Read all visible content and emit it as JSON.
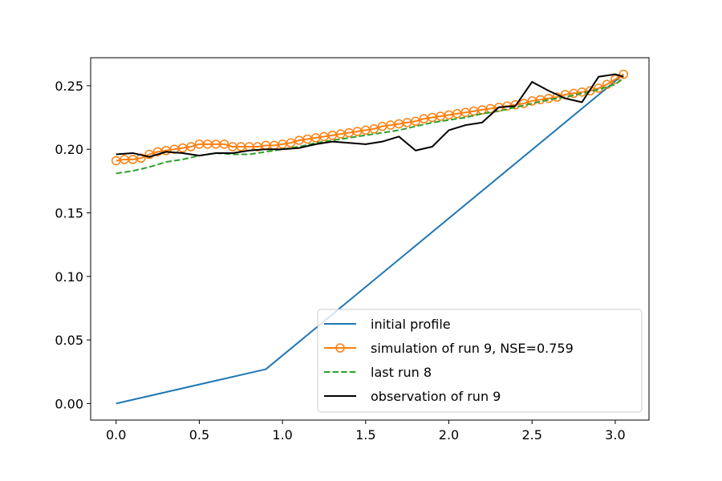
{
  "chart_data": {
    "type": "line",
    "title": "",
    "xlabel": "",
    "ylabel": "",
    "xlim": [
      -0.153,
      3.203
    ],
    "ylim": [
      -0.013,
      0.272
    ],
    "grid": false,
    "legend_position": "lower-right",
    "x_ticks": [
      0.0,
      0.5,
      1.0,
      1.5,
      2.0,
      2.5,
      3.0
    ],
    "x_tick_labels": [
      "0.0",
      "0.5",
      "1.0",
      "1.5",
      "2.0",
      "2.5",
      "3.0"
    ],
    "y_ticks": [
      0.0,
      0.05,
      0.1,
      0.15,
      0.2,
      0.25
    ],
    "y_tick_labels": [
      "0.00",
      "0.05",
      "0.10",
      "0.15",
      "0.20",
      "0.25"
    ],
    "series": [
      {
        "name": "initial profile",
        "color": "#1f77b4",
        "style": "solid",
        "marker": "none",
        "x": [
          0.0,
          0.9,
          3.05
        ],
        "y": [
          0.0,
          0.027,
          0.259
        ]
      },
      {
        "name": "simulation of run 9, NSE=0.759",
        "color": "#ff7f0e",
        "style": "solid",
        "marker": "circle-open",
        "x": [
          0.0,
          0.05,
          0.1,
          0.15,
          0.2,
          0.25,
          0.3,
          0.35,
          0.4,
          0.45,
          0.5,
          0.55,
          0.6,
          0.65,
          0.7,
          0.75,
          0.8,
          0.85,
          0.9,
          0.95,
          1.0,
          1.05,
          1.1,
          1.15,
          1.2,
          1.25,
          1.3,
          1.35,
          1.4,
          1.45,
          1.5,
          1.55,
          1.6,
          1.65,
          1.7,
          1.75,
          1.8,
          1.85,
          1.9,
          1.95,
          2.0,
          2.05,
          2.1,
          2.15,
          2.2,
          2.25,
          2.3,
          2.35,
          2.4,
          2.45,
          2.5,
          2.55,
          2.6,
          2.65,
          2.7,
          2.75,
          2.8,
          2.85,
          2.9,
          2.95,
          3.0,
          3.05
        ],
        "y": [
          0.191,
          0.192,
          0.192,
          0.193,
          0.196,
          0.198,
          0.199,
          0.2,
          0.201,
          0.202,
          0.204,
          0.204,
          0.204,
          0.204,
          0.202,
          0.202,
          0.202,
          0.202,
          0.203,
          0.203,
          0.204,
          0.205,
          0.207,
          0.208,
          0.209,
          0.21,
          0.211,
          0.212,
          0.213,
          0.214,
          0.215,
          0.216,
          0.218,
          0.219,
          0.22,
          0.221,
          0.222,
          0.224,
          0.225,
          0.226,
          0.227,
          0.228,
          0.229,
          0.23,
          0.231,
          0.232,
          0.233,
          0.234,
          0.235,
          0.236,
          0.238,
          0.239,
          0.24,
          0.241,
          0.243,
          0.244,
          0.245,
          0.246,
          0.248,
          0.251,
          0.255,
          0.259
        ]
      },
      {
        "name": "last run 8",
        "color": "#2ca02c",
        "style": "dashed",
        "marker": "none",
        "x": [
          0.0,
          0.1,
          0.2,
          0.3,
          0.4,
          0.5,
          0.6,
          0.7,
          0.8,
          0.9,
          1.0,
          1.1,
          1.2,
          1.3,
          1.4,
          1.5,
          1.6,
          1.7,
          1.8,
          1.9,
          2.0,
          2.1,
          2.2,
          2.3,
          2.4,
          2.5,
          2.6,
          2.7,
          2.8,
          2.9,
          3.0,
          3.05
        ],
        "y": [
          0.181,
          0.183,
          0.186,
          0.19,
          0.192,
          0.195,
          0.197,
          0.196,
          0.196,
          0.198,
          0.2,
          0.202,
          0.205,
          0.207,
          0.209,
          0.211,
          0.213,
          0.215,
          0.218,
          0.221,
          0.223,
          0.225,
          0.228,
          0.23,
          0.233,
          0.236,
          0.239,
          0.241,
          0.244,
          0.247,
          0.251,
          0.256
        ]
      },
      {
        "name": "observation of run 9",
        "color": "#000000",
        "style": "solid",
        "marker": "none",
        "x": [
          0.0,
          0.1,
          0.2,
          0.3,
          0.4,
          0.5,
          0.6,
          0.7,
          0.8,
          0.9,
          1.0,
          1.1,
          1.2,
          1.3,
          1.4,
          1.5,
          1.6,
          1.7,
          1.8,
          1.9,
          2.0,
          2.1,
          2.2,
          2.3,
          2.4,
          2.5,
          2.6,
          2.7,
          2.8,
          2.9,
          3.0,
          3.05
        ],
        "y": [
          0.196,
          0.197,
          0.194,
          0.198,
          0.197,
          0.195,
          0.197,
          0.197,
          0.199,
          0.2,
          0.2,
          0.201,
          0.204,
          0.206,
          0.205,
          0.204,
          0.206,
          0.21,
          0.199,
          0.202,
          0.215,
          0.219,
          0.221,
          0.233,
          0.234,
          0.253,
          0.246,
          0.24,
          0.237,
          0.257,
          0.259,
          0.257
        ]
      }
    ]
  }
}
